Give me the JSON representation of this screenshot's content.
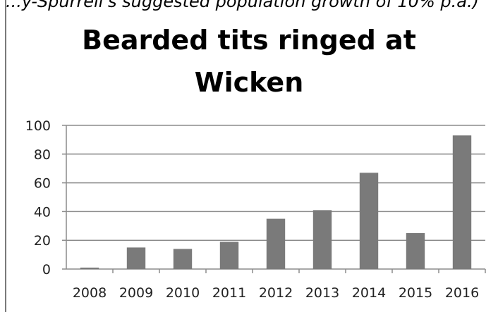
{
  "header_text": "...y-Spurrell's suggested population growth of 10% p.a.)",
  "chart_data": {
    "type": "bar",
    "title_lines": [
      "Bearded tits ringed at",
      "Wicken"
    ],
    "categories": [
      "2008",
      "2009",
      "2010",
      "2011",
      "2012",
      "2013",
      "2014",
      "2015",
      "2016"
    ],
    "values": [
      1,
      15,
      14,
      19,
      35,
      41,
      67,
      25,
      93
    ],
    "ylim": [
      0,
      100
    ],
    "yticks": [
      0,
      20,
      40,
      60,
      80,
      100
    ],
    "xlabel": "",
    "ylabel": "",
    "grid": true,
    "colors": {
      "bar": "#7a7a7a",
      "grid": "#8c8c8c",
      "axis": "#8c8c8c"
    }
  }
}
